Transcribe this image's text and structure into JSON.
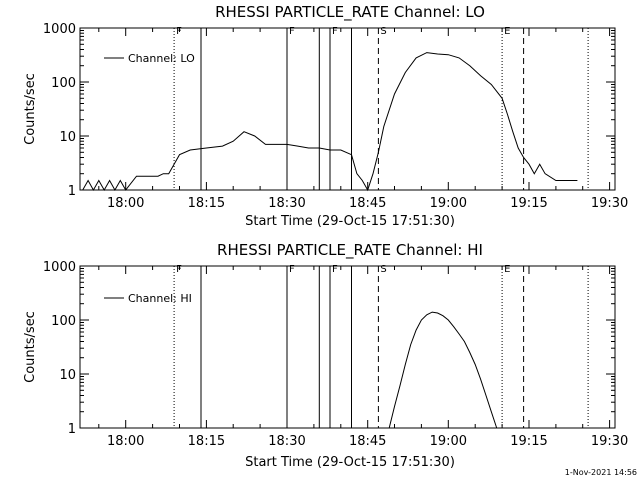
{
  "footer": "1-Nov-2021 14:56",
  "chart_data": [
    {
      "type": "line",
      "title": "RHESSI PARTICLE_RATE Channel: LO",
      "xlabel": "Start Time (29-Oct-15 17:51:30)",
      "ylabel": "Counts/sec",
      "yscale": "log",
      "ylim": [
        1,
        1000
      ],
      "xlim": [
        "17:51:30",
        "19:31:00"
      ],
      "grid": false,
      "legend": "top-left",
      "x_ticks": [
        "18:00",
        "18:15",
        "18:30",
        "18:45",
        "19:00",
        "19:15",
        "19:30"
      ],
      "y_ticks": [
        "1",
        "10",
        "100",
        "1000"
      ],
      "series": [
        {
          "name": "Channel: LO",
          "x": [
            "17:52:00",
            "17:53:00",
            "17:54:00",
            "17:55:00",
            "17:56:00",
            "17:57:00",
            "17:58:00",
            "17:59:00",
            "18:00:00",
            "18:02:00",
            "18:04:00",
            "18:06:00",
            "18:07:00",
            "18:08:00",
            "18:09:00",
            "18:10:00",
            "18:12:00",
            "18:15:00",
            "18:18:00",
            "18:20:00",
            "18:22:00",
            "18:24:00",
            "18:26:00",
            "18:28:00",
            "18:30:00",
            "18:32:00",
            "18:34:00",
            "18:36:00",
            "18:38:00",
            "18:40:00",
            "18:42:00",
            "18:43:00",
            "18:44:00",
            "18:45:00",
            "18:46:00",
            "18:47:00",
            "18:48:00",
            "18:50:00",
            "18:52:00",
            "18:54:00",
            "18:56:00",
            "18:58:00",
            "19:00:00",
            "19:02:00",
            "19:04:00",
            "19:06:00",
            "19:08:00",
            "19:10:00",
            "19:11:00",
            "19:12:00",
            "19:13:00",
            "19:14:00",
            "19:15:00",
            "19:16:00",
            "19:17:00",
            "19:18:00",
            "19:20:00",
            "19:22:00",
            "19:24:00"
          ],
          "values": [
            1,
            1.5,
            1,
            1.5,
            1,
            1.5,
            1,
            1.5,
            1,
            1.8,
            1.8,
            1.8,
            2,
            2,
            3,
            4.5,
            5.5,
            6,
            6.5,
            8,
            12,
            10,
            7,
            7,
            7,
            6.5,
            6,
            6,
            5.5,
            5.5,
            4.5,
            2,
            1.5,
            1,
            2,
            5,
            15,
            60,
            150,
            280,
            350,
            330,
            320,
            280,
            200,
            130,
            90,
            50,
            25,
            12,
            6,
            4,
            3,
            2,
            3,
            2,
            1.5,
            1.5,
            1.5
          ]
        }
      ],
      "vlines": [
        {
          "time": "18:09:00",
          "style": "dotted",
          "label": "F"
        },
        {
          "time": "18:14:00",
          "style": "solid",
          "label": ""
        },
        {
          "time": "18:30:00",
          "style": "solid",
          "label": "F"
        },
        {
          "time": "18:36:00",
          "style": "solid",
          "label": ""
        },
        {
          "time": "18:38:00",
          "style": "solid",
          "label": "F"
        },
        {
          "time": "18:42:00",
          "style": "solid",
          "label": ""
        },
        {
          "time": "18:47:00",
          "style": "dashed",
          "label": "S"
        },
        {
          "time": "19:10:00",
          "style": "dotted",
          "label": "E"
        },
        {
          "time": "19:14:00",
          "style": "dashed",
          "label": ""
        },
        {
          "time": "19:26:00",
          "style": "dotted",
          "label": ""
        }
      ]
    },
    {
      "type": "line",
      "title": "RHESSI PARTICLE_RATE Channel: HI",
      "xlabel": "Start Time (29-Oct-15 17:51:30)",
      "ylabel": "Counts/sec",
      "yscale": "log",
      "ylim": [
        1,
        1000
      ],
      "xlim": [
        "17:51:30",
        "19:31:00"
      ],
      "grid": false,
      "legend": "top-left",
      "x_ticks": [
        "18:00",
        "18:15",
        "18:30",
        "18:45",
        "19:00",
        "19:15",
        "19:30"
      ],
      "y_ticks": [
        "1",
        "10",
        "100",
        "1000"
      ],
      "series": [
        {
          "name": "Channel: HI",
          "x": [
            "18:49:00",
            "18:50:00",
            "18:51:00",
            "18:52:00",
            "18:53:00",
            "18:54:00",
            "18:55:00",
            "18:56:00",
            "18:57:00",
            "18:58:00",
            "18:59:00",
            "19:00:00",
            "19:01:00",
            "19:02:00",
            "19:03:00",
            "19:04:00",
            "19:05:00",
            "19:06:00",
            "19:07:00",
            "19:08:00",
            "19:09:00"
          ],
          "values": [
            1,
            2.5,
            6,
            15,
            35,
            65,
            100,
            125,
            140,
            135,
            120,
            100,
            75,
            55,
            40,
            25,
            15,
            8,
            4,
            2,
            1
          ]
        }
      ],
      "vlines": [
        {
          "time": "18:09:00",
          "style": "dotted",
          "label": "F"
        },
        {
          "time": "18:14:00",
          "style": "solid",
          "label": ""
        },
        {
          "time": "18:30:00",
          "style": "solid",
          "label": "F"
        },
        {
          "time": "18:36:00",
          "style": "solid",
          "label": ""
        },
        {
          "time": "18:38:00",
          "style": "solid",
          "label": "F"
        },
        {
          "time": "18:42:00",
          "style": "solid",
          "label": ""
        },
        {
          "time": "18:47:00",
          "style": "dashed",
          "label": "S"
        },
        {
          "time": "19:10:00",
          "style": "dotted",
          "label": "E"
        },
        {
          "time": "19:14:00",
          "style": "dashed",
          "label": ""
        },
        {
          "time": "19:26:00",
          "style": "dotted",
          "label": ""
        }
      ]
    }
  ]
}
